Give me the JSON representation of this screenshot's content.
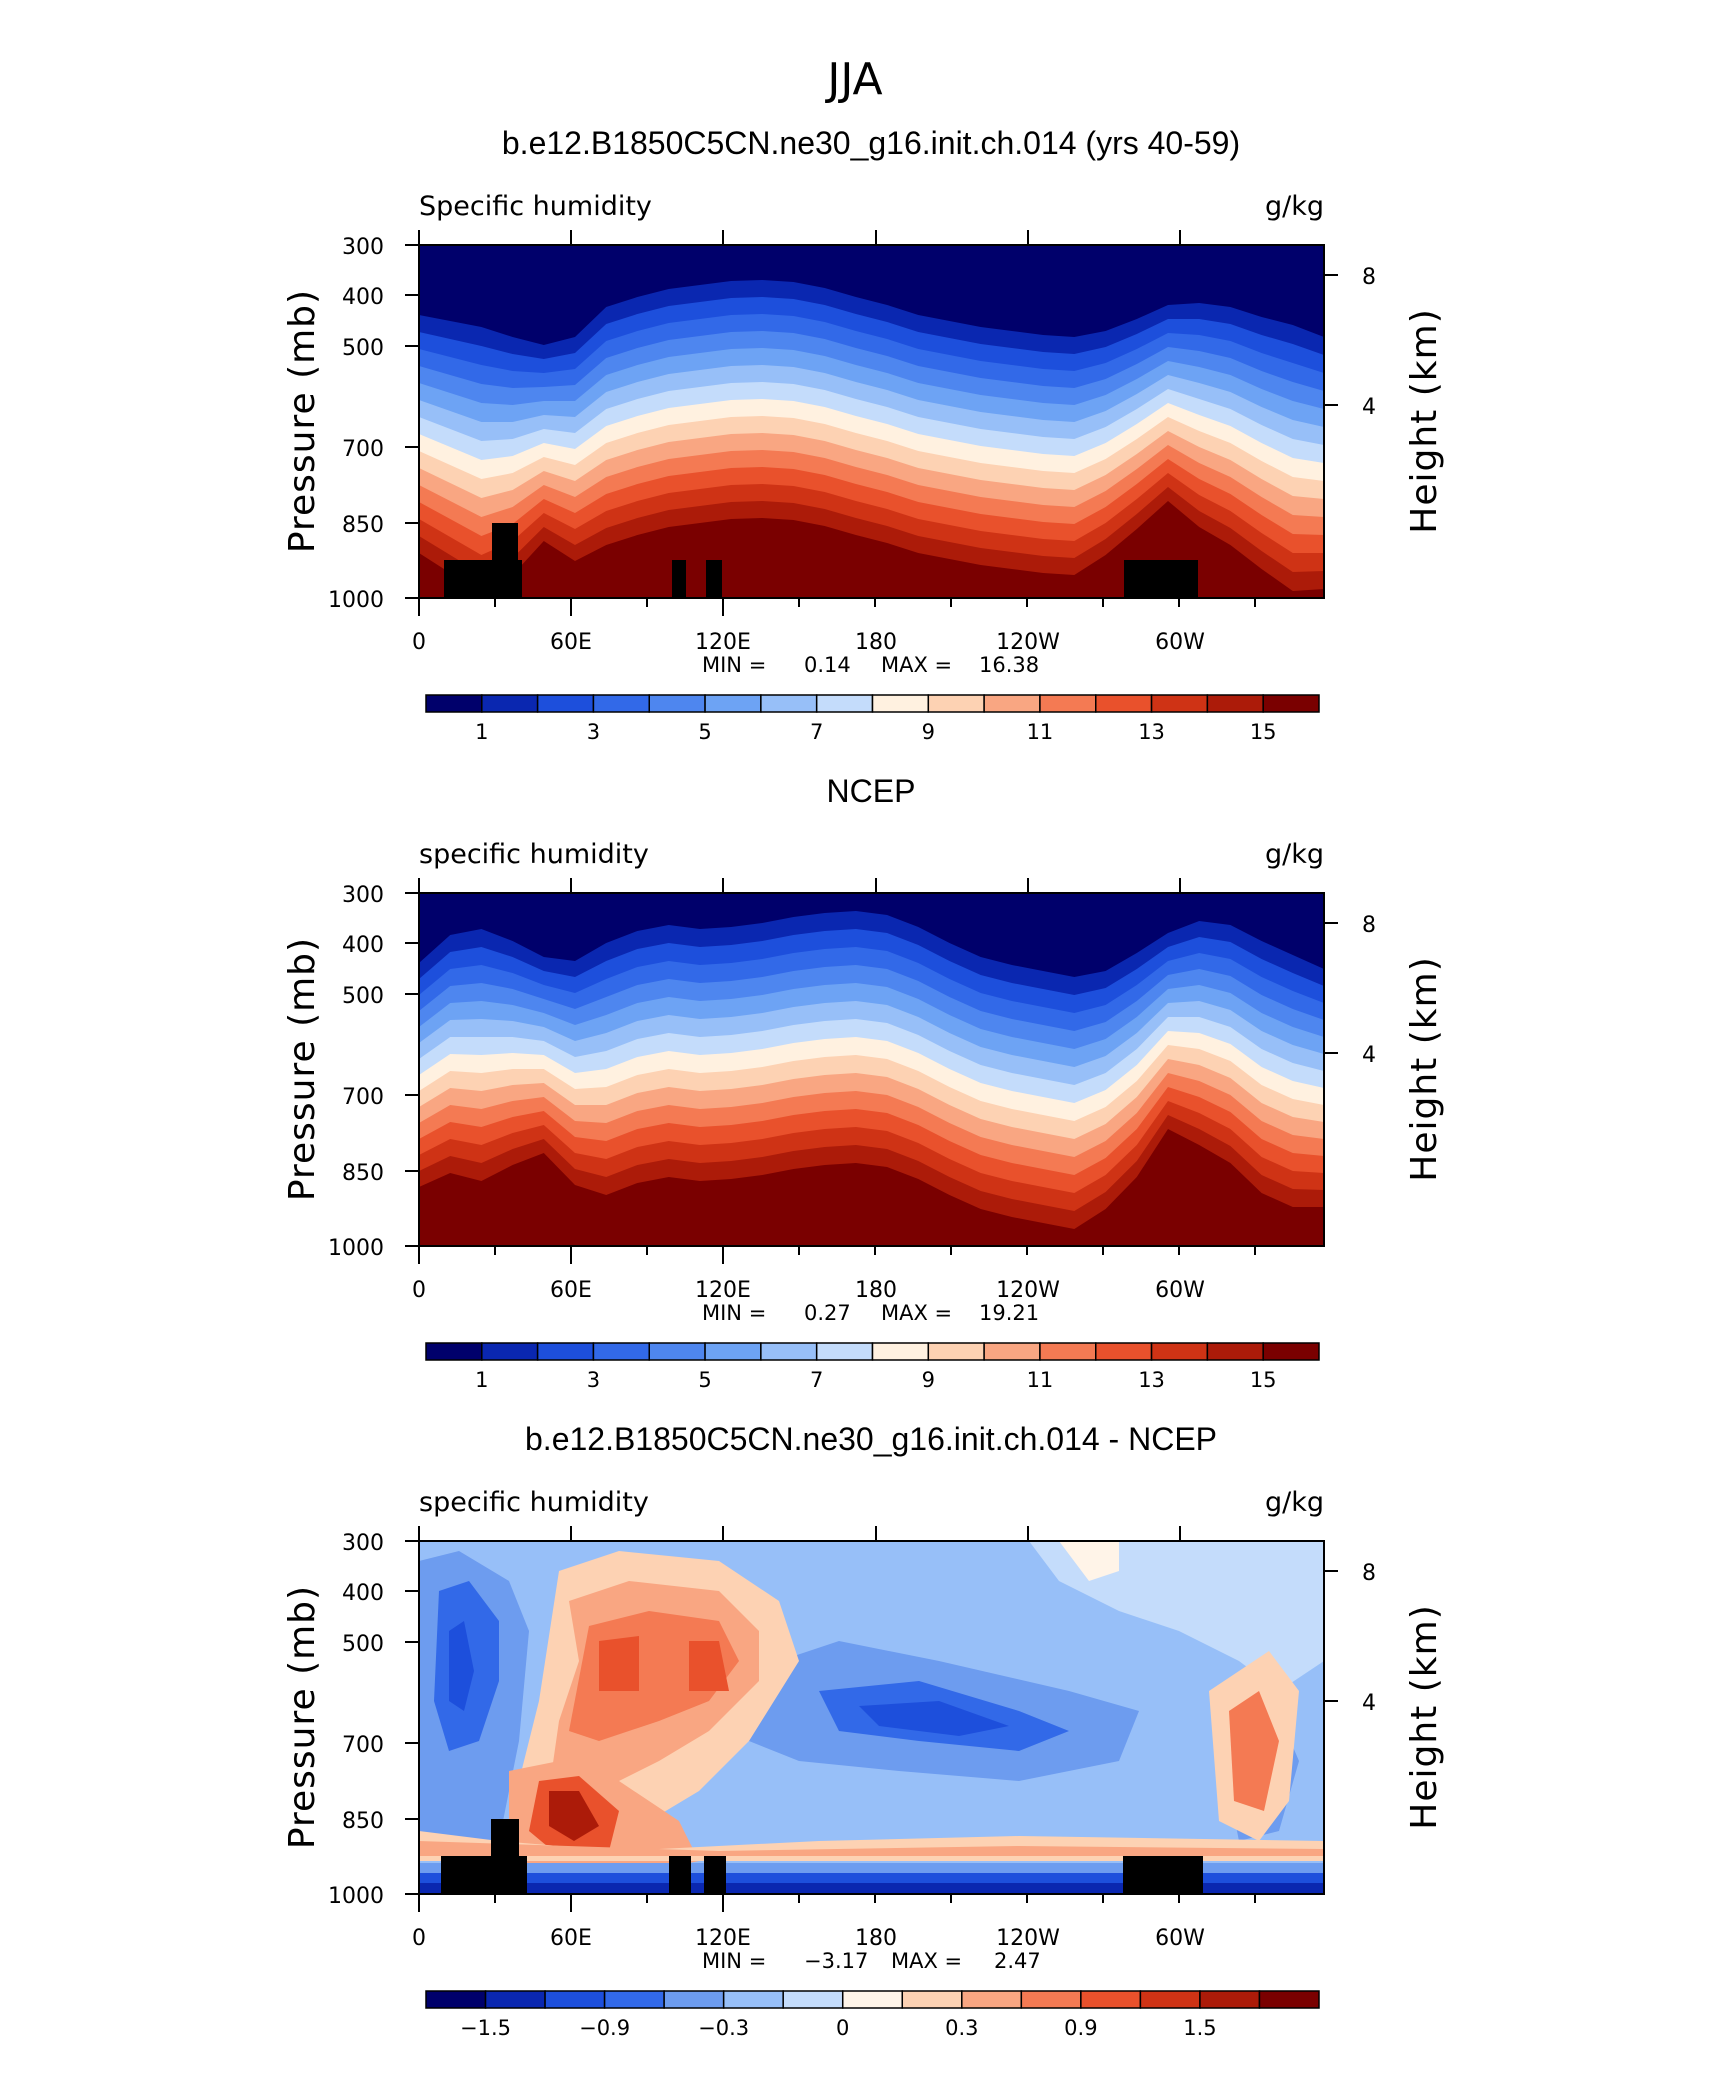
{
  "figure_title": "JJA",
  "chart_data": [
    {
      "type": "heatmap",
      "title": "b.e12.B1850C5CN.ne30_g16.init.ch.014 (yrs 40-59)",
      "left_label": "Specific humidity",
      "right_label": "g/kg",
      "ylabel": "Pressure (mb)",
      "ylabel_right": "Height (km)",
      "x_ticks": [
        "0",
        "60E",
        "120E",
        "180",
        "120W",
        "60W"
      ],
      "y_ticks": [
        "300",
        "400",
        "500",
        "700",
        "850",
        "1000"
      ],
      "y_right_ticks": [
        "8",
        "4"
      ],
      "min_label": "MIN =",
      "min": "0.14",
      "max_label": "MAX =",
      "max": "16.38",
      "contour_levels": [
        "1",
        "3",
        "5",
        "7",
        "9",
        "11",
        "13",
        "15"
      ]
    },
    {
      "type": "heatmap",
      "title": "NCEP",
      "left_label": "specific humidity",
      "right_label": "g/kg",
      "ylabel": "Pressure (mb)",
      "ylabel_right": "Height (km)",
      "x_ticks": [
        "0",
        "60E",
        "120E",
        "180",
        "120W",
        "60W"
      ],
      "y_ticks": [
        "300",
        "400",
        "500",
        "700",
        "850",
        "1000"
      ],
      "y_right_ticks": [
        "8",
        "4"
      ],
      "min_label": "MIN =",
      "min": "0.27",
      "max_label": "MAX =",
      "max": "19.21",
      "contour_levels": [
        "1",
        "3",
        "5",
        "7",
        "9",
        "11",
        "13",
        "15"
      ]
    },
    {
      "type": "heatmap",
      "title": "b.e12.B1850C5CN.ne30_g16.init.ch.014 - NCEP",
      "left_label": "specific humidity",
      "right_label": "g/kg",
      "ylabel": "Pressure (mb)",
      "ylabel_right": "Height (km)",
      "x_ticks": [
        "0",
        "60E",
        "120E",
        "180",
        "120W",
        "60W"
      ],
      "y_ticks": [
        "300",
        "400",
        "500",
        "700",
        "850",
        "1000"
      ],
      "y_right_ticks": [
        "8",
        "4"
      ],
      "min_label": "MIN =",
      "min": "−3.17",
      "max_label": "MAX =",
      "max": "2.47",
      "contour_levels": [
        "−1.5",
        "−0.9",
        "−0.3",
        "0",
        "0.3",
        "0.9",
        "1.5"
      ]
    }
  ],
  "colors": {
    "palette16": [
      "#00006b",
      "#0a27b0",
      "#1d4fdc",
      "#3269e8",
      "#4e86ef",
      "#6da3f4",
      "#97bff8",
      "#c4dcfb",
      "#fff1e0",
      "#fdd2b3",
      "#f9a682",
      "#f47a53",
      "#e9512c",
      "#cf3315",
      "#ac1b09",
      "#7a0000"
    ],
    "diff": [
      "#00006b",
      "#0a27b0",
      "#1d4fdc",
      "#3269e8",
      "#6d9cef",
      "#97bff8",
      "#c4dcfb",
      "#fff4e8",
      "#fdd2b3",
      "#f9a682",
      "#f47a53",
      "#e9512c",
      "#cf3315",
      "#ac1b09",
      "#7a0000"
    ]
  }
}
